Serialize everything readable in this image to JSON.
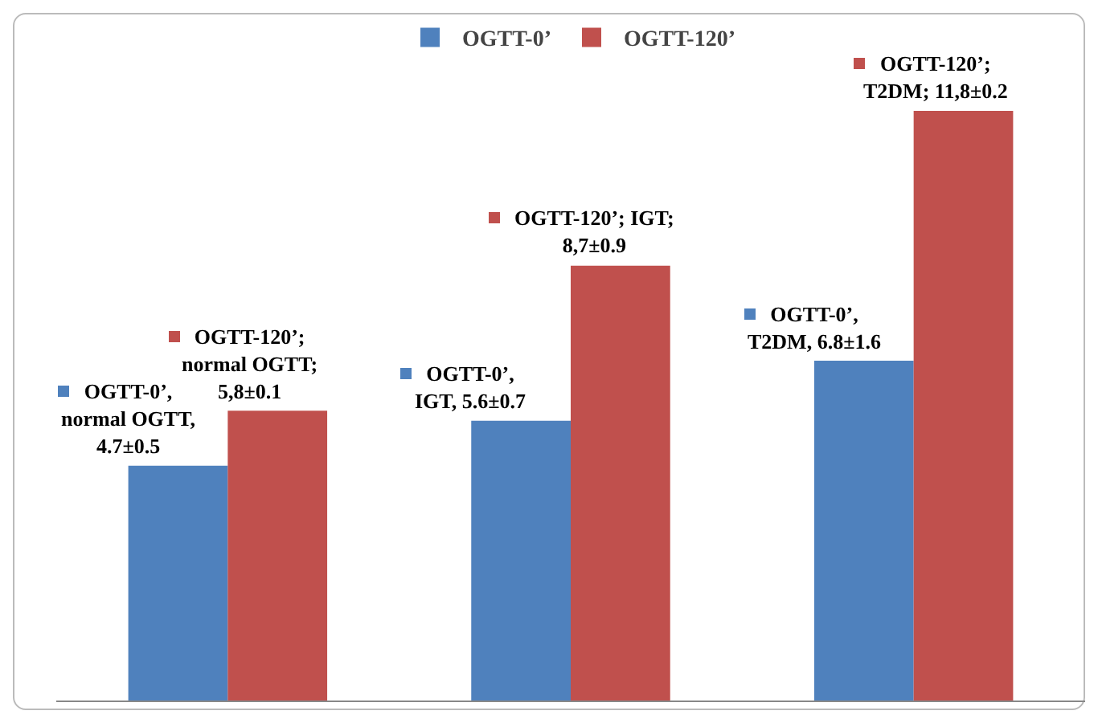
{
  "chart_data": {
    "type": "bar",
    "categories": [
      null,
      null,
      null
    ],
    "series": [
      {
        "name": "OGTT-0’",
        "color": "#4f81bd",
        "values": [
          4.7,
          5.6,
          6.8
        ],
        "value_labels": [
          "OGTT-0’,\nnormal OGTT,\n4.7±0.5",
          "OGTT-0’,\nIGT, 5.6±0.7",
          "OGTT-0’,\nT2DM, 6.8±1.6"
        ]
      },
      {
        "name": "OGTT-120’",
        "color": "#c0504d",
        "values": [
          5.8,
          8.7,
          11.8
        ],
        "value_labels": [
          "OGTT-120’;\nnormal OGTT;\n5,8±0.1",
          "OGTT-120’; IGT;\n8,7±0.9",
          "OGTT-120’;\nT2DM; 11,8±0.2"
        ]
      }
    ],
    "legend": "top",
    "grid": false
  }
}
